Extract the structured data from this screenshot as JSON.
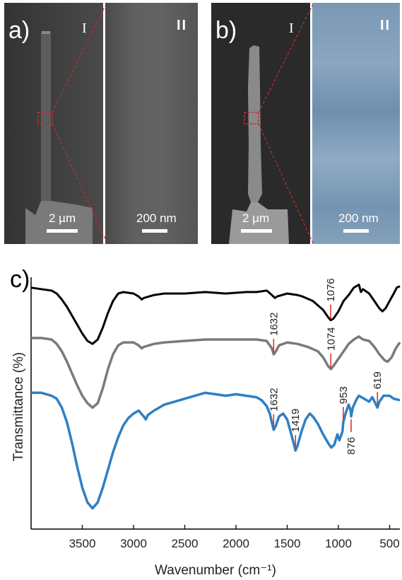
{
  "panel_a": {
    "label": "a)",
    "left_mark": "I",
    "right_mark": "II",
    "left_scale": "2 µm",
    "right_scale": "200 nm"
  },
  "panel_b": {
    "label": "b)",
    "left_mark": "I",
    "right_mark": "II",
    "left_scale": "2 µm",
    "right_scale": "200 nm"
  },
  "colors": {
    "sem_dark": "#3c3c3c",
    "sem_zoom_a": "#5c5c5c",
    "sem_zoom_b": "#7f9fba",
    "highlight_box": "#cc2a2a",
    "series_top": "#000000",
    "series_middle": "#7a7a7a",
    "series_bottom": "#2f7fc3",
    "peak_marker": "#e03030"
  },
  "chart_data": {
    "type": "line",
    "panel_label": "c)",
    "xlabel": "Wavenumber (cm⁻¹)",
    "ylabel": "Transmittance (%)",
    "xlim": [
      4000,
      400
    ],
    "x_reversed": true,
    "xticks": [
      3500,
      3000,
      2500,
      2000,
      1500,
      1000,
      500
    ],
    "y_tick_labels": false,
    "grid": false,
    "legend": "none",
    "series": [
      {
        "color": "#000000",
        "points": [
          [
            4000,
            93
          ],
          [
            3900,
            92
          ],
          [
            3800,
            91
          ],
          [
            3750,
            89
          ],
          [
            3700,
            85
          ],
          [
            3650,
            80
          ],
          [
            3600,
            74
          ],
          [
            3550,
            68
          ],
          [
            3500,
            62
          ],
          [
            3450,
            57
          ],
          [
            3400,
            55
          ],
          [
            3350,
            58
          ],
          [
            3300,
            66
          ],
          [
            3250,
            76
          ],
          [
            3200,
            84
          ],
          [
            3150,
            89
          ],
          [
            3100,
            90
          ],
          [
            3000,
            89
          ],
          [
            2950,
            87
          ],
          [
            2920,
            85
          ],
          [
            2900,
            86
          ],
          [
            2850,
            87
          ],
          [
            2800,
            88
          ],
          [
            2700,
            89
          ],
          [
            2500,
            89
          ],
          [
            2300,
            90
          ],
          [
            2100,
            89
          ],
          [
            1900,
            90
          ],
          [
            1800,
            90
          ],
          [
            1700,
            91
          ],
          [
            1650,
            88
          ],
          [
            1620,
            86
          ],
          [
            1600,
            87
          ],
          [
            1500,
            89
          ],
          [
            1400,
            88
          ],
          [
            1350,
            87
          ],
          [
            1250,
            84
          ],
          [
            1150,
            78
          ],
          [
            1100,
            73
          ],
          [
            1076,
            71
          ],
          [
            1050,
            72
          ],
          [
            1000,
            77
          ],
          [
            950,
            84
          ],
          [
            900,
            88
          ],
          [
            850,
            93
          ],
          [
            800,
            95
          ],
          [
            780,
            90
          ],
          [
            760,
            92
          ],
          [
            700,
            89
          ],
          [
            650,
            84
          ],
          [
            600,
            79
          ],
          [
            570,
            77
          ],
          [
            540,
            79
          ],
          [
            500,
            84
          ],
          [
            460,
            89
          ],
          [
            430,
            93
          ],
          [
            400,
            94
          ]
        ]
      },
      {
        "color": "#7a7a7a",
        "points": [
          [
            4000,
            59
          ],
          [
            3900,
            59
          ],
          [
            3800,
            58
          ],
          [
            3750,
            55
          ],
          [
            3700,
            50
          ],
          [
            3650,
            43
          ],
          [
            3600,
            35
          ],
          [
            3550,
            27
          ],
          [
            3500,
            20
          ],
          [
            3450,
            15
          ],
          [
            3400,
            12
          ],
          [
            3350,
            15
          ],
          [
            3300,
            25
          ],
          [
            3250,
            38
          ],
          [
            3200,
            48
          ],
          [
            3150,
            54
          ],
          [
            3100,
            56
          ],
          [
            3000,
            56
          ],
          [
            2950,
            54
          ],
          [
            2920,
            52
          ],
          [
            2900,
            53
          ],
          [
            2850,
            54
          ],
          [
            2800,
            55
          ],
          [
            2700,
            56
          ],
          [
            2500,
            57
          ],
          [
            2300,
            58
          ],
          [
            2100,
            58
          ],
          [
            1900,
            58
          ],
          [
            1800,
            58
          ],
          [
            1700,
            57
          ],
          [
            1650,
            52
          ],
          [
            1632,
            48
          ],
          [
            1610,
            50
          ],
          [
            1580,
            54
          ],
          [
            1500,
            56
          ],
          [
            1400,
            55
          ],
          [
            1300,
            53
          ],
          [
            1200,
            50
          ],
          [
            1150,
            46
          ],
          [
            1100,
            40
          ],
          [
            1074,
            38
          ],
          [
            1050,
            40
          ],
          [
            1000,
            45
          ],
          [
            950,
            50
          ],
          [
            900,
            55
          ],
          [
            850,
            58
          ],
          [
            800,
            60
          ],
          [
            780,
            59
          ],
          [
            760,
            58
          ],
          [
            700,
            57
          ],
          [
            650,
            53
          ],
          [
            600,
            48
          ],
          [
            550,
            44
          ],
          [
            520,
            43
          ],
          [
            480,
            46
          ],
          [
            440,
            52
          ],
          [
            400,
            56
          ]
        ]
      },
      {
        "color": "#2f7fc3",
        "points": [
          [
            4000,
            22
          ],
          [
            3900,
            22
          ],
          [
            3800,
            20
          ],
          [
            3750,
            18
          ],
          [
            3700,
            12
          ],
          [
            3650,
            2
          ],
          [
            3600,
            -12
          ],
          [
            3550,
            -28
          ],
          [
            3500,
            -42
          ],
          [
            3450,
            -52
          ],
          [
            3400,
            -56
          ],
          [
            3350,
            -52
          ],
          [
            3300,
            -42
          ],
          [
            3250,
            -30
          ],
          [
            3200,
            -18
          ],
          [
            3150,
            -8
          ],
          [
            3100,
            0
          ],
          [
            3050,
            5
          ],
          [
            3000,
            8
          ],
          [
            2950,
            10
          ],
          [
            2900,
            6
          ],
          [
            2880,
            4
          ],
          [
            2860,
            7
          ],
          [
            2800,
            10
          ],
          [
            2700,
            14
          ],
          [
            2600,
            16
          ],
          [
            2500,
            18
          ],
          [
            2400,
            20
          ],
          [
            2300,
            22
          ],
          [
            2200,
            21
          ],
          [
            2100,
            20
          ],
          [
            2000,
            21
          ],
          [
            1900,
            20
          ],
          [
            1800,
            19
          ],
          [
            1750,
            17
          ],
          [
            1700,
            13
          ],
          [
            1670,
            8
          ],
          [
            1650,
            2
          ],
          [
            1632,
            -3
          ],
          [
            1610,
            0
          ],
          [
            1580,
            6
          ],
          [
            1540,
            8
          ],
          [
            1500,
            4
          ],
          [
            1460,
            -6
          ],
          [
            1430,
            -14
          ],
          [
            1419,
            -17
          ],
          [
            1400,
            -14
          ],
          [
            1360,
            -4
          ],
          [
            1320,
            4
          ],
          [
            1280,
            8
          ],
          [
            1250,
            6
          ],
          [
            1200,
            1
          ],
          [
            1150,
            -6
          ],
          [
            1100,
            -12
          ],
          [
            1070,
            -15
          ],
          [
            1040,
            -13
          ],
          [
            1010,
            -6
          ],
          [
            990,
            -10
          ],
          [
            960,
            -4
          ],
          [
            953,
            2
          ],
          [
            930,
            8
          ],
          [
            900,
            14
          ],
          [
            880,
            10
          ],
          [
            876,
            6
          ],
          [
            860,
            12
          ],
          [
            820,
            18
          ],
          [
            800,
            20
          ],
          [
            750,
            18
          ],
          [
            700,
            16
          ],
          [
            670,
            19
          ],
          [
            640,
            15
          ],
          [
            619,
            12
          ],
          [
            600,
            16
          ],
          [
            560,
            20
          ],
          [
            500,
            20
          ],
          [
            460,
            18
          ],
          [
            400,
            17
          ]
        ]
      }
    ],
    "annotations": [
      {
        "label": "1076",
        "x": 1076,
        "series": 0
      },
      {
        "label": "1632",
        "x": 1632,
        "series": 1
      },
      {
        "label": "1074",
        "x": 1074,
        "series": 1
      },
      {
        "label": "1632",
        "x": 1632,
        "series": 2
      },
      {
        "label": "1419",
        "x": 1419,
        "series": 2
      },
      {
        "label": "953",
        "x": 953,
        "series": 2
      },
      {
        "label": "876",
        "x": 876,
        "series": 2
      },
      {
        "label": "619",
        "x": 619,
        "series": 2
      }
    ]
  }
}
